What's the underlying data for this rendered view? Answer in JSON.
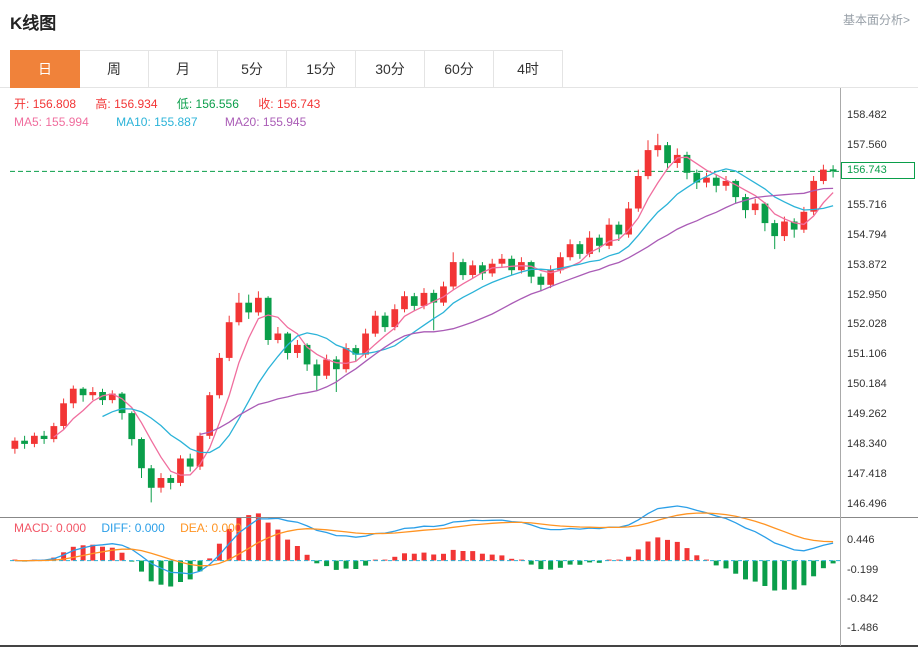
{
  "header": {
    "title": "K线图",
    "link": "基本面分析>"
  },
  "tabs": {
    "items": [
      "日",
      "周",
      "月",
      "5分",
      "15分",
      "30分",
      "60分",
      "4时"
    ],
    "selected": "日"
  },
  "ohlc": {
    "open_label": "开:",
    "open": "156.808",
    "high_label": "高:",
    "high": "156.934",
    "low_label": "低:",
    "low": "156.556",
    "close_label": "收:",
    "close": "156.743"
  },
  "ma": {
    "ma5_label": "MA5:",
    "ma5": "155.994",
    "ma10_label": "MA10:",
    "ma10": "155.887",
    "ma20_label": "MA20:",
    "ma20": "155.945"
  },
  "macd_header": {
    "macd_label": "MACD:",
    "macd": "0.000",
    "diff_label": "DIFF:",
    "diff": "0.000",
    "dea_label": "DEA:",
    "dea": "0.000"
  },
  "colors": {
    "up": "#f23535",
    "down": "#0a9e4a",
    "ma5": "#f06e9e",
    "ma10": "#2bb3d8",
    "ma20": "#aa5cb6",
    "macd": "#f25666",
    "diff": "#2b9fe8",
    "dea": "#ff9423",
    "tab_active_bg": "#f0823a",
    "link": "#98a0a8",
    "current_line": "#0a9e4a"
  },
  "chart_data": {
    "type": "candlestick",
    "title": "K线图",
    "timeframe": "日",
    "legend": [
      "MA5",
      "MA10",
      "MA20",
      "MACD",
      "DIFF",
      "DEA"
    ],
    "ohlc_today": {
      "open": 156.808,
      "high": 156.934,
      "low": 156.556,
      "close": 156.743
    },
    "ma_values": {
      "MA5": 155.994,
      "MA10": 155.887,
      "MA20": 155.945
    },
    "macd_values": {
      "MACD": 0.0,
      "DIFF": 0.0,
      "DEA": 0.0
    },
    "current_price": 156.743,
    "current_price_text": "156.743",
    "price_axis_labels": [
      "158.482",
      "157.560",
      "155.716",
      "154.794",
      "153.872",
      "152.950",
      "152.028",
      "151.106",
      "150.184",
      "149.262",
      "148.340",
      "147.418",
      "146.496"
    ],
    "macd_axis_labels": [
      "0.446",
      "-0.199",
      "-0.842",
      "-1.486"
    ],
    "price_range": [
      146.13,
      159.25
    ],
    "macd_range": [
      -1.85,
      0.9
    ],
    "grid": false,
    "candles_format": "open,high,low,close",
    "candles": [
      [
        148.2,
        148.55,
        148.05,
        148.45
      ],
      [
        148.45,
        148.6,
        148.2,
        148.35
      ],
      [
        148.35,
        148.7,
        148.25,
        148.6
      ],
      [
        148.6,
        148.75,
        148.35,
        148.5
      ],
      [
        148.5,
        149.0,
        148.4,
        148.9
      ],
      [
        148.9,
        149.75,
        148.8,
        149.6
      ],
      [
        149.6,
        150.15,
        149.45,
        150.05
      ],
      [
        150.05,
        150.1,
        149.65,
        149.85
      ],
      [
        149.85,
        150.1,
        149.7,
        149.95
      ],
      [
        149.95,
        150.05,
        149.55,
        149.7
      ],
      [
        149.7,
        150.0,
        149.6,
        149.9
      ],
      [
        149.9,
        149.95,
        149.1,
        149.3
      ],
      [
        149.3,
        149.35,
        148.3,
        148.5
      ],
      [
        148.5,
        148.55,
        147.3,
        147.6
      ],
      [
        147.6,
        147.7,
        146.55,
        147.0
      ],
      [
        147.0,
        147.45,
        146.85,
        147.3
      ],
      [
        147.3,
        147.4,
        146.95,
        147.15
      ],
      [
        147.15,
        148.0,
        147.05,
        147.9
      ],
      [
        147.9,
        148.05,
        147.5,
        147.65
      ],
      [
        147.65,
        148.7,
        147.55,
        148.6
      ],
      [
        148.6,
        149.95,
        148.5,
        149.85
      ],
      [
        149.85,
        151.15,
        149.75,
        151.0
      ],
      [
        151.0,
        152.3,
        150.9,
        152.1
      ],
      [
        152.1,
        153.0,
        152.0,
        152.7
      ],
      [
        152.7,
        152.95,
        152.2,
        152.4
      ],
      [
        152.4,
        153.05,
        152.3,
        152.85
      ],
      [
        152.85,
        152.9,
        151.4,
        151.55
      ],
      [
        151.55,
        151.95,
        151.45,
        151.75
      ],
      [
        151.75,
        151.8,
        150.95,
        151.15
      ],
      [
        151.15,
        151.55,
        151.0,
        151.4
      ],
      [
        151.4,
        151.45,
        150.6,
        150.8
      ],
      [
        150.8,
        150.95,
        150.0,
        150.45
      ],
      [
        150.45,
        151.1,
        150.35,
        150.95
      ],
      [
        150.95,
        151.05,
        149.95,
        150.65
      ],
      [
        150.65,
        151.45,
        150.55,
        151.3
      ],
      [
        151.3,
        151.4,
        150.9,
        151.1
      ],
      [
        151.1,
        151.9,
        151.0,
        151.75
      ],
      [
        151.75,
        152.45,
        151.65,
        152.3
      ],
      [
        152.3,
        152.4,
        151.8,
        151.95
      ],
      [
        151.95,
        152.65,
        151.85,
        152.5
      ],
      [
        152.5,
        153.05,
        152.4,
        152.9
      ],
      [
        152.9,
        153.0,
        152.45,
        152.6
      ],
      [
        152.6,
        153.15,
        152.5,
        153.0
      ],
      [
        153.0,
        153.1,
        151.85,
        152.7
      ],
      [
        152.7,
        153.35,
        152.6,
        153.2
      ],
      [
        153.2,
        154.25,
        153.1,
        153.95
      ],
      [
        153.95,
        154.05,
        153.4,
        153.55
      ],
      [
        153.55,
        154.0,
        153.45,
        153.85
      ],
      [
        153.85,
        153.95,
        153.4,
        153.6
      ],
      [
        153.6,
        154.05,
        153.5,
        153.9
      ],
      [
        153.9,
        154.2,
        153.8,
        154.05
      ],
      [
        154.05,
        154.15,
        153.55,
        153.7
      ],
      [
        153.7,
        154.1,
        153.6,
        153.95
      ],
      [
        153.95,
        154.0,
        153.3,
        153.5
      ],
      [
        153.5,
        153.6,
        153.05,
        153.25
      ],
      [
        153.25,
        153.85,
        153.15,
        153.7
      ],
      [
        153.7,
        154.25,
        153.6,
        154.1
      ],
      [
        154.1,
        154.65,
        154.0,
        154.5
      ],
      [
        154.5,
        154.6,
        154.05,
        154.2
      ],
      [
        154.2,
        154.9,
        154.1,
        154.7
      ],
      [
        154.7,
        154.8,
        154.25,
        154.45
      ],
      [
        154.45,
        155.3,
        154.35,
        155.1
      ],
      [
        155.1,
        155.2,
        154.6,
        154.8
      ],
      [
        154.8,
        155.8,
        154.7,
        155.6
      ],
      [
        155.6,
        156.8,
        155.5,
        156.6
      ],
      [
        156.6,
        157.7,
        156.5,
        157.4
      ],
      [
        157.4,
        157.9,
        157.2,
        157.55
      ],
      [
        157.55,
        157.65,
        156.8,
        157.0
      ],
      [
        157.0,
        157.45,
        156.85,
        157.25
      ],
      [
        157.25,
        157.35,
        156.5,
        156.7
      ],
      [
        156.7,
        156.8,
        156.2,
        156.4
      ],
      [
        156.4,
        156.7,
        156.25,
        156.55
      ],
      [
        156.55,
        156.65,
        156.1,
        156.3
      ],
      [
        156.3,
        156.6,
        156.15,
        156.45
      ],
      [
        156.45,
        156.5,
        155.75,
        155.95
      ],
      [
        155.95,
        156.05,
        155.3,
        155.55
      ],
      [
        155.55,
        155.9,
        155.4,
        155.75
      ],
      [
        155.75,
        155.8,
        154.9,
        155.15
      ],
      [
        155.15,
        155.25,
        154.35,
        154.75
      ],
      [
        154.75,
        155.35,
        154.6,
        155.2
      ],
      [
        155.2,
        155.3,
        154.7,
        154.95
      ],
      [
        154.95,
        155.65,
        154.85,
        155.5
      ],
      [
        155.5,
        156.6,
        155.4,
        156.45
      ],
      [
        156.45,
        156.95,
        156.35,
        156.8
      ],
      [
        156.808,
        156.934,
        156.556,
        156.743
      ]
    ]
  }
}
